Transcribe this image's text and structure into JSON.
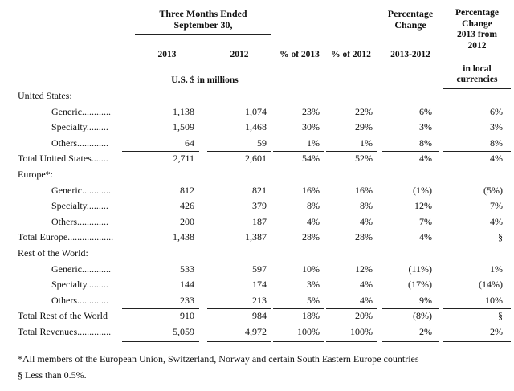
{
  "header": {
    "three_months_line1": "Three Months Ended",
    "three_months_line2": "September 30,",
    "pct_change_line1": "Percentage",
    "pct_change_line2": "Change",
    "pct_change_local_line1": "Percentage",
    "pct_change_local_line2": "Change",
    "pct_change_local_line3": "2013 from",
    "pct_change_local_line4": "2012",
    "col_2013": "2013",
    "col_2012": "2012",
    "col_pct2013": "% of 2013",
    "col_pct2012": "% of 2012",
    "col_change": "2013-2012",
    "local_line1": "in local",
    "local_line2": "currencies",
    "units": "U.S. $ in millions"
  },
  "rows": [
    {
      "label": "United States:",
      "indent": 0,
      "values": [
        "",
        "",
        "",
        "",
        "",
        ""
      ],
      "rule": "none"
    },
    {
      "label": "Generic............",
      "indent": 1,
      "values": [
        "1,138",
        "1,074",
        "23%",
        "22%",
        "6%",
        "6%"
      ],
      "rule": "none"
    },
    {
      "label": "Specialty.........",
      "indent": 1,
      "values": [
        "1,509",
        "1,468",
        "30%",
        "29%",
        "3%",
        "3%"
      ],
      "rule": "none"
    },
    {
      "label": "Others.............",
      "indent": 1,
      "values": [
        "64",
        "59",
        "1%",
        "1%",
        "8%",
        "8%"
      ],
      "rule": "thin"
    },
    {
      "label": "Total United States.......",
      "indent": 0,
      "values": [
        "2,711",
        "2,601",
        "54%",
        "52%",
        "4%",
        "4%"
      ],
      "rule": "none"
    },
    {
      "label": "Europe*:",
      "indent": 0,
      "values": [
        "",
        "",
        "",
        "",
        "",
        ""
      ],
      "rule": "none"
    },
    {
      "label": "Generic............",
      "indent": 1,
      "values": [
        "812",
        "821",
        "16%",
        "16%",
        "(1%)",
        "(5%)"
      ],
      "rule": "none"
    },
    {
      "label": "Specialty.........",
      "indent": 1,
      "values": [
        "426",
        "379",
        "8%",
        "8%",
        "12%",
        "7%"
      ],
      "rule": "none"
    },
    {
      "label": "Others.............",
      "indent": 1,
      "values": [
        "200",
        "187",
        "4%",
        "4%",
        "7%",
        "4%"
      ],
      "rule": "thin"
    },
    {
      "label": "Total Europe...................",
      "indent": 0,
      "values": [
        "1,438",
        "1,387",
        "28%",
        "28%",
        "4%",
        "§"
      ],
      "rule": "none"
    },
    {
      "label": "Rest of the World:",
      "indent": 0,
      "values": [
        "",
        "",
        "",
        "",
        "",
        ""
      ],
      "rule": "none"
    },
    {
      "label": "Generic............",
      "indent": 1,
      "values": [
        "533",
        "597",
        "10%",
        "12%",
        "(11%)",
        "1%"
      ],
      "rule": "none"
    },
    {
      "label": "Specialty.........",
      "indent": 1,
      "values": [
        "144",
        "174",
        "3%",
        "4%",
        "(17%)",
        "(14%)"
      ],
      "rule": "none"
    },
    {
      "label": "Others.............",
      "indent": 1,
      "values": [
        "233",
        "213",
        "5%",
        "4%",
        "9%",
        "10%"
      ],
      "rule": "thin"
    },
    {
      "label": "Total Rest of the World",
      "indent": 0,
      "values": [
        "910",
        "984",
        "18%",
        "20%",
        "(8%)",
        "§"
      ],
      "rule": "thin"
    },
    {
      "label": "Total Revenues..............",
      "indent": 0,
      "values": [
        "5,059",
        "4,972",
        "100%",
        "100%",
        "2%",
        "2%"
      ],
      "rule": "double"
    }
  ],
  "footnotes": {
    "europe": "*All members of the European Union, Switzerland, Norway and certain South Eastern Europe countries",
    "less_than": "§ Less than 0.5%."
  }
}
